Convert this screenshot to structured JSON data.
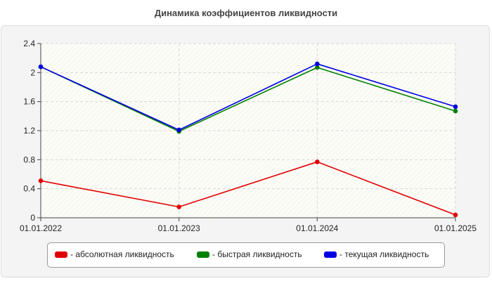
{
  "chart_data": {
    "type": "line",
    "title": "Динамика коэффициентов ликвидности",
    "categories": [
      "01.01.2022",
      "01.01.2023",
      "01.01.2024",
      "01.01.2025"
    ],
    "ylim": [
      0,
      2.4
    ],
    "yticks": [
      "0",
      "0.4",
      "0.8",
      "1.2",
      "1.6",
      "2",
      "2.4"
    ],
    "yticks_values": [
      0,
      0.4,
      0.8,
      1.2,
      1.6,
      2,
      2.4
    ],
    "grid": true,
    "legend_position": "bottom",
    "series": [
      {
        "name": "- абсолютная ликвидность",
        "color": "#e00000",
        "values": [
          0.51,
          0.15,
          0.77,
          0.04
        ]
      },
      {
        "name": "- быстрая ликвидность",
        "color": "#008000",
        "values": [
          2.08,
          1.19,
          2.07,
          1.47
        ]
      },
      {
        "name": "- текущая ликвидность",
        "color": "#0000e0",
        "values": [
          2.08,
          1.21,
          2.12,
          1.53
        ]
      }
    ]
  }
}
